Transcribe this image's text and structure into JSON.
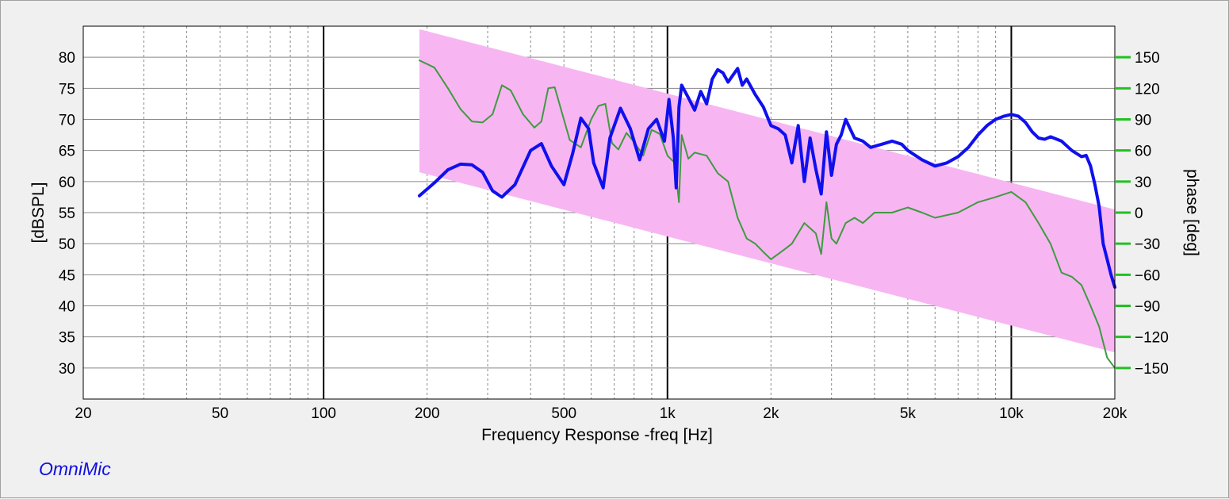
{
  "brand": "OmniMic",
  "colors": {
    "band": "#f7b6f2",
    "magnitude": "#1010ee",
    "phase": "#3f9a3f",
    "phase_tick": "#22c022",
    "grid_major": "#000000",
    "grid_minor": "#888888"
  },
  "chart_data": {
    "type": "line",
    "xlabel": "Frequency Response -freq [Hz]",
    "ylabel": "[dBSPL]",
    "y2label": "phase [deg]",
    "x_scale": "log",
    "xlim": [
      20,
      20000
    ],
    "ylim": [
      25,
      85
    ],
    "y2lim": [
      -150,
      150
    ],
    "x_ticks": [
      {
        "value": 20,
        "label": "20"
      },
      {
        "value": 50,
        "label": "50"
      },
      {
        "value": 100,
        "label": "100"
      },
      {
        "value": 200,
        "label": "200"
      },
      {
        "value": 500,
        "label": "500"
      },
      {
        "value": 1000,
        "label": "1k"
      },
      {
        "value": 2000,
        "label": "2k"
      },
      {
        "value": 5000,
        "label": "5k"
      },
      {
        "value": 10000,
        "label": "10k"
      },
      {
        "value": 20000,
        "label": "20k"
      }
    ],
    "y_ticks": [
      30,
      35,
      40,
      45,
      50,
      55,
      60,
      65,
      70,
      75,
      80
    ],
    "y2_ticks": [
      -150,
      -120,
      -90,
      -60,
      -30,
      0,
      30,
      60,
      90,
      120,
      150
    ],
    "grid": true,
    "band": {
      "x": [
        190,
        20000
      ],
      "upper_db": [
        84.5,
        55.5
      ],
      "lower_db": [
        61.5,
        32.5
      ]
    },
    "series": [
      {
        "axis": "left",
        "color": "#1010ee",
        "x": [
          190,
          210,
          230,
          250,
          270,
          290,
          310,
          330,
          360,
          400,
          430,
          460,
          500,
          530,
          560,
          590,
          610,
          650,
          680,
          730,
          780,
          830,
          880,
          930,
          980,
          1010,
          1040,
          1060,
          1080,
          1100,
          1150,
          1200,
          1250,
          1300,
          1350,
          1400,
          1450,
          1500,
          1600,
          1650,
          1700,
          1800,
          1900,
          2000,
          2100,
          2200,
          2300,
          2400,
          2500,
          2600,
          2700,
          2800,
          2900,
          3000,
          3100,
          3200,
          3300,
          3500,
          3700,
          3900,
          4200,
          4500,
          4800,
          5000,
          5500,
          6000,
          6500,
          7000,
          7500,
          8000,
          8500,
          9000,
          9500,
          10000,
          10500,
          11000,
          11500,
          12000,
          12500,
          13000,
          14000,
          15000,
          16000,
          16500,
          17000,
          17500,
          18000,
          18500,
          19000,
          19500,
          20000
        ],
        "y": [
          57.7,
          59.8,
          61.9,
          62.8,
          62.7,
          61.5,
          58.5,
          57.5,
          59.5,
          65.0,
          66.1,
          62.5,
          59.5,
          64.5,
          70.2,
          68.5,
          63.0,
          59.0,
          67.0,
          71.8,
          68.5,
          63.5,
          68.5,
          70.0,
          66.5,
          73.2,
          67.0,
          59.0,
          72.0,
          75.5,
          73.5,
          71.5,
          74.5,
          72.5,
          76.5,
          78.0,
          77.5,
          76.0,
          78.2,
          75.5,
          76.5,
          74.0,
          72.0,
          69.0,
          68.5,
          67.5,
          63.0,
          69.0,
          60.0,
          67.0,
          62.0,
          58.0,
          68.0,
          61.0,
          66.0,
          67.5,
          70.0,
          67.0,
          66.5,
          65.5,
          66.0,
          66.5,
          66.0,
          65.0,
          63.5,
          62.5,
          63.0,
          64.0,
          65.5,
          67.5,
          69.0,
          70.0,
          70.5,
          70.8,
          70.5,
          69.5,
          68.0,
          67.0,
          66.8,
          67.2,
          66.5,
          65.0,
          64.0,
          64.2,
          62.5,
          59.5,
          56.0,
          50.0,
          47.5,
          45.0,
          43.0
        ]
      },
      {
        "axis": "right",
        "color": "#3f9a3f",
        "x": [
          190,
          210,
          230,
          250,
          270,
          290,
          310,
          330,
          350,
          380,
          410,
          430,
          450,
          470,
          490,
          520,
          560,
          600,
          630,
          660,
          690,
          720,
          760,
          800,
          850,
          900,
          950,
          1000,
          1050,
          1080,
          1100,
          1150,
          1200,
          1300,
          1400,
          1500,
          1600,
          1700,
          1800,
          1900,
          2000,
          2100,
          2200,
          2300,
          2500,
          2700,
          2800,
          2900,
          3000,
          3100,
          3300,
          3500,
          3700,
          4000,
          4500,
          5000,
          5500,
          6000,
          7000,
          8000,
          9000,
          10000,
          11000,
          12000,
          13000,
          14000,
          15000,
          16000,
          17000,
          18000,
          19000,
          20000
        ],
        "y": [
          147,
          140,
          120,
          100,
          88,
          87,
          95,
          123,
          118,
          95,
          82,
          88,
          120,
          121,
          100,
          70,
          63,
          90,
          103,
          105,
          67,
          61,
          77,
          68,
          55,
          80,
          76,
          55,
          48,
          10,
          75,
          52,
          58,
          55,
          38,
          30,
          -5,
          -25,
          -30,
          -38,
          -45,
          -40,
          -35,
          -30,
          -10,
          -20,
          -40,
          10,
          -25,
          -30,
          -10,
          -5,
          -10,
          0,
          0,
          5,
          0,
          -5,
          0,
          10,
          15,
          20,
          10,
          -10,
          -30,
          -58,
          -62,
          -70,
          -90,
          -110,
          -140,
          -150
        ]
      }
    ]
  }
}
